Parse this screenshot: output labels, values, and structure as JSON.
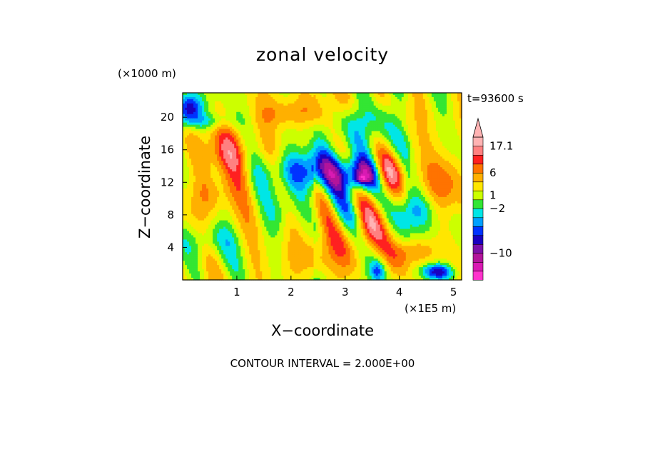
{
  "chart_data": {
    "type": "heatmap",
    "title": "zonal velocity",
    "time_label": "t=93600 s",
    "xlabel": "X−coordinate",
    "ylabel": "Z−coordinate",
    "x_unit": "(×1E5 m)",
    "y_unit": "(×1000 m)",
    "xlim": [
      0.0,
      5.15
    ],
    "ylim": [
      0.0,
      23.0
    ],
    "x_ticks": [
      {
        "value": 1,
        "label": "1"
      },
      {
        "value": 2,
        "label": "2"
      },
      {
        "value": 3,
        "label": "3"
      },
      {
        "value": 4,
        "label": "4"
      },
      {
        "value": 5,
        "label": "5"
      }
    ],
    "y_ticks": [
      {
        "value": 4,
        "label": "4"
      },
      {
        "value": 8,
        "label": "8"
      },
      {
        "value": 12,
        "label": "12"
      },
      {
        "value": 16,
        "label": "16"
      },
      {
        "value": 20,
        "label": "20"
      }
    ],
    "colorbar": {
      "colors": [
        "#ff33cc",
        "#d91ab3",
        "#b3149b",
        "#7d10a8",
        "#1a00c0",
        "#0033ff",
        "#00a0ff",
        "#00e6e6",
        "#33e633",
        "#ccff00",
        "#ffe600",
        "#ffb000",
        "#ff7300",
        "#ff2020",
        "#ff8080",
        "#ffb3b3"
      ],
      "tick_labels": [
        {
          "label": "17.1",
          "level": 15
        },
        {
          "label": "6",
          "level": 12
        },
        {
          "label": "1",
          "level": 9.5
        },
        {
          "label": "−2",
          "level": 8
        },
        {
          "label": "−10",
          "level": 3
        }
      ]
    },
    "field": {
      "description_levels": "values are colour-band indices 0 (most negative) .. 15 (most positive)",
      "background": 9.5,
      "blobs": [
        {
          "x": 0.8,
          "z": 15.5,
          "sx": 0.5,
          "sz": 3.5,
          "amp": 3.0
        },
        {
          "x": 0.6,
          "z": 10.5,
          "sx": 0.5,
          "sz": 2.5,
          "amp": 2.0
        },
        {
          "x": 0.5,
          "z": 5.0,
          "sx": 0.6,
          "sz": 2.0,
          "amp": -1.5
        },
        {
          "x": 0.1,
          "z": 21.0,
          "sx": 0.25,
          "sz": 2.0,
          "amp": -6.0
        },
        {
          "x": 0.5,
          "z": 19.5,
          "sx": 0.4,
          "sz": 1.0,
          "amp": -2.0
        },
        {
          "x": 2.5,
          "z": 13.5,
          "sx": 0.8,
          "sz": 2.5,
          "amp": -5.5
        },
        {
          "x": 3.3,
          "z": 12.8,
          "sx": 0.35,
          "sz": 2.0,
          "amp": -6.5
        },
        {
          "x": 3.3,
          "z": 12.4,
          "sx": 0.12,
          "sz": 0.6,
          "amp": -3.0
        },
        {
          "x": 3.8,
          "z": 13.5,
          "sx": 0.35,
          "sz": 2.5,
          "amp": 3.5
        },
        {
          "x": 4.8,
          "z": 12.0,
          "sx": 0.35,
          "sz": 4.0,
          "amp": 2.5
        },
        {
          "x": 2.0,
          "z": 20.5,
          "sx": 0.6,
          "sz": 1.8,
          "amp": 2.5
        },
        {
          "x": 3.4,
          "z": 19.5,
          "sx": 0.5,
          "sz": 2.5,
          "amp": -2.5
        },
        {
          "x": 3.45,
          "z": 6.5,
          "sx": 0.3,
          "sz": 3.0,
          "amp": 3.5
        },
        {
          "x": 2.4,
          "z": 2.5,
          "sx": 0.6,
          "sz": 2.5,
          "amp": 2.0
        },
        {
          "x": 4.3,
          "z": 3.5,
          "sx": 0.4,
          "sz": 1.5,
          "amp": 2.0
        },
        {
          "x": 4.7,
          "z": 1.0,
          "sx": 0.3,
          "sz": 1.0,
          "amp": -5.5
        },
        {
          "x": 3.6,
          "z": 1.2,
          "sx": 0.12,
          "sz": 1.2,
          "amp": -3.0
        },
        {
          "x": 1.8,
          "z": 8.5,
          "sx": 0.25,
          "sz": 2.5,
          "amp": -1.5
        },
        {
          "x": 4.3,
          "z": 8.5,
          "sx": 0.4,
          "sz": 2.5,
          "amp": -3.0
        }
      ],
      "noise_amp": 1.4
    },
    "contour_interval_text": "CONTOUR INTERVAL = 2.000E+00",
    "grid": false,
    "legend_position": "right"
  }
}
